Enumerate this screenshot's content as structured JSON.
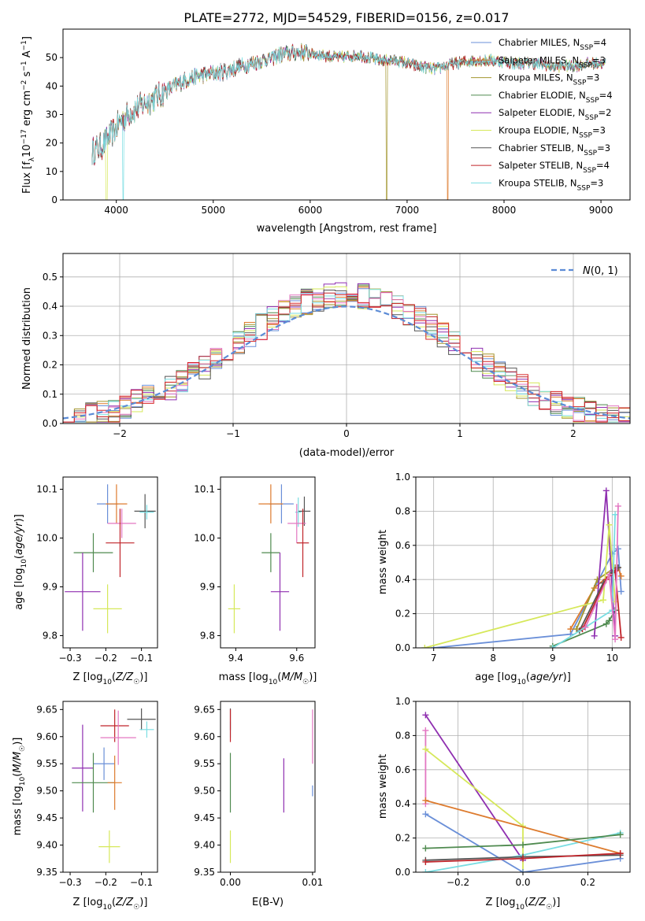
{
  "figure": {
    "title": "PLATE=2772, MJD=54529, FIBERID=0156, z=0.017"
  },
  "colors": {
    "Chabrier MILES": "#6a8fd8",
    "Salpeter MILES": "#dd7b2e",
    "Kroupa MILES": "#a3962f",
    "Chabrier ELODIE": "#4f8a4f",
    "Salpeter ELODIE": "#8f2fb0",
    "Kroupa ELODIE": "#d6e85a",
    "Chabrier STELIB": "#555555",
    "Salpeter STELIB": "#c0242a",
    "Kroupa STELIB": "#79dde2",
    "extra_hist_1": "#e377c2",
    "extra_hist_2": "#d62728",
    "normal_curve": "#5b8bd6"
  },
  "chart_data": [
    {
      "id": "spectrum",
      "type": "line",
      "xlabel": "wavelength [Angstrom, rest frame]",
      "ylabel": "Flux [f_λ 10^-17 erg cm^-2 s^-1 A^-1]",
      "xlim": [
        3450,
        9300
      ],
      "ylim": [
        0,
        60
      ],
      "xticks": [
        4000,
        5000,
        6000,
        7000,
        8000,
        9000
      ],
      "yticks": [
        0,
        10,
        20,
        30,
        40,
        50
      ],
      "legend_position": "top-right",
      "legend": [
        "Chabrier MILES, N_SSP=4",
        "Salpeter MILES, N_SSP=3",
        "Kroupa MILES, N_SSP=3",
        "Chabrier ELODIE, N_SSP=4",
        "Salpeter ELODIE, N_SSP=2",
        "Kroupa ELODIE, N_SSP=3",
        "Chabrier STELIB, N_SSP=3",
        "Salpeter STELIB, N_SSP=4",
        "Kroupa STELIB, N_SSP=3"
      ],
      "continuum": {
        "x": [
          3750,
          3850,
          3950,
          4050,
          4150,
          4300,
          4500,
          4700,
          4900,
          5100,
          5300,
          5500,
          5700,
          5900,
          6100,
          6300,
          6500,
          6700,
          6900,
          7100,
          7300,
          7500,
          7700,
          7900,
          8100,
          8300,
          8500,
          8700,
          8900,
          9050
        ],
        "y": [
          17,
          19,
          23,
          28,
          31,
          34,
          38,
          42,
          44,
          45,
          47,
          49,
          51,
          52,
          51,
          50,
          51,
          49,
          49,
          47,
          46,
          48,
          49,
          49,
          48,
          48,
          47,
          47,
          48,
          48
        ]
      },
      "dropouts": [
        {
          "series": "Kroupa ELODIE",
          "x": 3900
        },
        {
          "series": "Kroupa STELIB",
          "x": 4070
        },
        {
          "series": "Kroupa MILES",
          "x": 6790
        },
        {
          "series": "Salpeter MILES",
          "x": 7420
        }
      ]
    },
    {
      "id": "residuals",
      "type": "histogram",
      "xlabel": "(data-model)/error",
      "ylabel": "Normed distribution",
      "xlim": [
        -2.5,
        2.5
      ],
      "ylim": [
        0,
        0.58
      ],
      "xticks": [
        -2,
        -1,
        0,
        1,
        2
      ],
      "yticks": [
        0.0,
        0.1,
        0.2,
        0.3,
        0.4,
        0.5
      ],
      "grid": true,
      "legend_position": "top-right",
      "legend": [
        "N(0,1)"
      ],
      "bin_width": 0.1,
      "series_count": 11
    },
    {
      "id": "age_vs_Z",
      "type": "scatter",
      "xlabel": "Z [log10(Z/Z☉)]",
      "ylabel": "age [log10(age/yr)]",
      "xlim": [
        -0.32,
        -0.055
      ],
      "ylim": [
        9.775,
        10.125
      ],
      "xticks": [
        -0.3,
        -0.2,
        -0.1
      ],
      "yticks": [
        9.8,
        9.9,
        10.0,
        10.1
      ],
      "points": [
        {
          "series": "Chabrier MILES",
          "x": -0.195,
          "y": 10.07,
          "xerr": 0.03,
          "yerr": 0.04
        },
        {
          "series": "Salpeter MILES",
          "x": -0.17,
          "y": 10.07,
          "xerr": 0.03,
          "yerr": 0.04
        },
        {
          "series": "Chabrier STELIB",
          "x": -0.09,
          "y": 10.055,
          "xerr": 0.03,
          "yerr": 0.035
        },
        {
          "series": "Kroupa STELIB",
          "x": -0.085,
          "y": 10.053,
          "xerr": 0.02,
          "yerr": 0.015
        },
        {
          "series": "extra_hist_1",
          "x": -0.155,
          "y": 10.03,
          "xerr": 0.04,
          "yerr": 0.03
        },
        {
          "series": "Salpeter STELIB",
          "x": -0.16,
          "y": 9.99,
          "xerr": 0.04,
          "yerr": 0.07
        },
        {
          "series": "Chabrier ELODIE",
          "x": -0.235,
          "y": 9.97,
          "xerr": 0.055,
          "yerr": 0.04
        },
        {
          "series": "Salpeter ELODIE",
          "x": -0.265,
          "y": 9.89,
          "xerr": 0.05,
          "yerr": 0.08
        },
        {
          "series": "Kroupa ELODIE",
          "x": -0.195,
          "y": 9.855,
          "xerr": 0.04,
          "yerr": 0.05
        }
      ]
    },
    {
      "id": "age_vs_mass",
      "type": "scatter",
      "xlabel": "mass [log10(M/M☉)]",
      "ylabel": "",
      "xlim": [
        9.35,
        9.66
      ],
      "ylim": [
        9.775,
        10.125
      ],
      "xticks": [
        9.4,
        9.6
      ],
      "yticks": [
        9.8,
        9.9,
        10.0,
        10.1
      ],
      "points": [
        {
          "series": "Chabrier MILES",
          "x": 9.55,
          "y": 10.07,
          "xerr": 0.04,
          "yerr": 0.04
        },
        {
          "series": "Salpeter MILES",
          "x": 9.515,
          "y": 10.07,
          "xerr": 0.04,
          "yerr": 0.04
        },
        {
          "series": "Chabrier STELIB",
          "x": 9.625,
          "y": 10.055,
          "xerr": 0.02,
          "yerr": 0.03
        },
        {
          "series": "Kroupa STELIB",
          "x": 9.605,
          "y": 10.053,
          "xerr": 0.01,
          "yerr": 0.03
        },
        {
          "series": "extra_hist_1",
          "x": 9.6,
          "y": 10.03,
          "xerr": 0.03,
          "yerr": 0.04
        },
        {
          "series": "Salpeter STELIB",
          "x": 9.62,
          "y": 9.99,
          "xerr": 0.02,
          "yerr": 0.07
        },
        {
          "series": "Chabrier ELODIE",
          "x": 9.515,
          "y": 9.97,
          "xerr": 0.03,
          "yerr": 0.04
        },
        {
          "series": "Salpeter ELODIE",
          "x": 9.545,
          "y": 9.89,
          "xerr": 0.03,
          "yerr": 0.08
        },
        {
          "series": "Kroupa ELODIE",
          "x": 9.395,
          "y": 9.855,
          "xerr": 0.02,
          "yerr": 0.05
        }
      ]
    },
    {
      "id": "weight_vs_age",
      "type": "line",
      "xlabel": "age [log10(age/yr)]",
      "ylabel": "mass weight",
      "xlim": [
        6.7,
        10.3
      ],
      "ylim": [
        0,
        1
      ],
      "xticks": [
        7,
        8,
        9,
        10
      ],
      "yticks": [
        0.0,
        0.2,
        0.4,
        0.6,
        0.8,
        1.0
      ],
      "grid": true,
      "series": [
        {
          "name": "Chabrier MILES",
          "x": [
            7.0,
            9.3,
            10.0,
            10.1,
            10.15
          ],
          "y": [
            0.0,
            0.08,
            0.55,
            0.58,
            0.33
          ]
        },
        {
          "name": "Salpeter MILES",
          "x": [
            9.3,
            9.7,
            10.1,
            10.15
          ],
          "y": [
            0.11,
            0.35,
            0.47,
            0.42
          ]
        },
        {
          "name": "Kroupa MILES",
          "x": [
            9.4,
            9.75,
            10.05
          ],
          "y": [
            0.11,
            0.4,
            0.47
          ]
        },
        {
          "name": "Chabrier ELODIE",
          "x": [
            9.0,
            9.9,
            9.95,
            10.05
          ],
          "y": [
            0.01,
            0.14,
            0.16,
            0.22
          ]
        },
        {
          "name": "Salpeter ELODIE",
          "x": [
            9.7,
            9.9,
            10.05
          ],
          "y": [
            0.07,
            0.92,
            0.07
          ]
        },
        {
          "name": "Kroupa ELODIE",
          "x": [
            6.85,
            9.85,
            9.95,
            10.05
          ],
          "y": [
            0.0,
            0.28,
            0.72,
            0.27
          ]
        },
        {
          "name": "Chabrier STELIB",
          "x": [
            9.45,
            9.85,
            10.0,
            10.1
          ],
          "y": [
            0.1,
            0.38,
            0.44,
            0.47
          ]
        },
        {
          "name": "Salpeter STELIB",
          "x": [
            9.5,
            9.9,
            10.05,
            10.15
          ],
          "y": [
            0.11,
            0.4,
            0.45,
            0.06
          ]
        },
        {
          "name": "Kroupa STELIB",
          "x": [
            9.0,
            10.0,
            10.05
          ],
          "y": [
            0.0,
            0.22,
            0.78
          ]
        },
        {
          "name": "extra_hist_1",
          "x": [
            9.55,
            9.95,
            10.05,
            10.1
          ],
          "y": [
            0.12,
            0.43,
            0.05,
            0.83
          ]
        }
      ]
    },
    {
      "id": "mass_vs_Z",
      "type": "scatter",
      "xlabel": "Z [log10(Z/Z☉)]",
      "ylabel": "mass [log10(M/M☉)]",
      "xlim": [
        -0.32,
        -0.055
      ],
      "ylim": [
        9.35,
        9.665
      ],
      "xticks": [
        -0.3,
        -0.2,
        -0.1
      ],
      "yticks": [
        9.35,
        9.4,
        9.45,
        9.5,
        9.55,
        9.6,
        9.65
      ],
      "points": [
        {
          "series": "Chabrier STELIB",
          "x": -0.1,
          "y": 9.632,
          "xerr": 0.04,
          "yerr": 0.02
        },
        {
          "series": "Kroupa STELIB",
          "x": -0.085,
          "y": 9.613,
          "xerr": 0.02,
          "yerr": 0.015
        },
        {
          "series": "Salpeter STELIB",
          "x": -0.175,
          "y": 9.62,
          "xerr": 0.04,
          "yerr": 0.03
        },
        {
          "series": "extra_hist_1",
          "x": -0.165,
          "y": 9.598,
          "xerr": 0.05,
          "yerr": 0.05
        },
        {
          "series": "Chabrier MILES",
          "x": -0.205,
          "y": 9.55,
          "xerr": 0.03,
          "yerr": 0.03
        },
        {
          "series": "Salpeter ELODIE",
          "x": -0.265,
          "y": 9.542,
          "xerr": 0.03,
          "yerr": 0.08
        },
        {
          "series": "Chabrier ELODIE",
          "x": -0.235,
          "y": 9.515,
          "xerr": 0.06,
          "yerr": 0.055
        },
        {
          "series": "Salpeter MILES",
          "x": -0.175,
          "y": 9.515,
          "xerr": 0.02,
          "yerr": 0.05
        },
        {
          "series": "Kroupa ELODIE",
          "x": -0.19,
          "y": 9.397,
          "xerr": 0.03,
          "yerr": 0.03
        }
      ]
    },
    {
      "id": "mass_vs_ebv",
      "type": "scatter",
      "xlabel": "E(B-V)",
      "ylabel": "",
      "xlim": [
        -0.0012,
        0.0103
      ],
      "ylim": [
        9.35,
        9.665
      ],
      "xticks": [
        0.0,
        0.01
      ],
      "yticks": [
        9.35,
        9.4,
        9.45,
        9.5,
        9.55,
        9.6,
        9.65
      ],
      "points": [
        {
          "series": "Chabrier STELIB",
          "x": 0.0,
          "y": 9.632,
          "xerr": 0.0,
          "yerr": 0.02
        },
        {
          "series": "Kroupa STELIB",
          "x": 0.0,
          "y": 9.613,
          "xerr": 0.0,
          "yerr": 0.015
        },
        {
          "series": "Salpeter STELIB",
          "x": 0.0,
          "y": 9.62,
          "xerr": 0.0,
          "yerr": 0.03
        },
        {
          "series": "Chabrier ELODIE",
          "x": 0.0,
          "y": 9.515,
          "xerr": 0.0,
          "yerr": 0.055
        },
        {
          "series": "Kroupa ELODIE",
          "x": 0.0,
          "y": 9.397,
          "xerr": 0.0,
          "yerr": 0.03
        },
        {
          "series": "Salpeter ELODIE",
          "x": 0.0065,
          "y": 9.51,
          "xerr": 0.0,
          "yerr": 0.05
        },
        {
          "series": "extra_hist_1",
          "x": 0.01,
          "y": 9.6,
          "xerr": 0.0,
          "yerr": 0.05
        },
        {
          "series": "Chabrier MILES",
          "x": 0.01,
          "y": 9.5,
          "xerr": 0.0,
          "yerr": 0.01
        }
      ]
    },
    {
      "id": "weight_vs_Z",
      "type": "line",
      "xlabel": "Z [log10(Z/Z☉)]",
      "ylabel": "mass weight",
      "xlim": [
        -0.33,
        0.33
      ],
      "ylim": [
        0,
        1
      ],
      "xticks": [
        -0.2,
        0.0,
        0.2
      ],
      "yticks": [
        0.0,
        0.2,
        0.4,
        0.6,
        0.8,
        1.0
      ],
      "grid": true,
      "series": [
        {
          "name": "Salpeter ELODIE",
          "x": [
            -0.3,
            0.0
          ],
          "y": [
            0.92,
            0.07
          ]
        },
        {
          "name": "extra_hist_1",
          "x": [
            -0.3,
            -0.3
          ],
          "y": [
            0.83,
            0.4
          ]
        },
        {
          "name": "Kroupa STELIB",
          "x": [
            -0.3,
            0.0,
            0.3
          ],
          "y": [
            0.0,
            0.1,
            0.23
          ]
        },
        {
          "name": "Kroupa ELODIE",
          "x": [
            -0.3,
            0.0,
            0.0
          ],
          "y": [
            0.72,
            0.27,
            0.0
          ]
        },
        {
          "name": "Salpeter MILES",
          "x": [
            -0.3,
            0.3
          ],
          "y": [
            0.42,
            0.11
          ]
        },
        {
          "name": "Chabrier MILES",
          "x": [
            -0.3,
            0.0,
            0.3
          ],
          "y": [
            0.34,
            0.0,
            0.08
          ]
        },
        {
          "name": "Chabrier ELODIE",
          "x": [
            -0.3,
            0.0,
            0.3
          ],
          "y": [
            0.14,
            0.16,
            0.22
          ]
        },
        {
          "name": "Chabrier STELIB",
          "x": [
            -0.3,
            0.0,
            0.3
          ],
          "y": [
            0.07,
            0.09,
            0.1
          ]
        },
        {
          "name": "Salpeter STELIB",
          "x": [
            -0.3,
            0.0,
            0.3
          ],
          "y": [
            0.06,
            0.08,
            0.11
          ]
        }
      ]
    }
  ]
}
